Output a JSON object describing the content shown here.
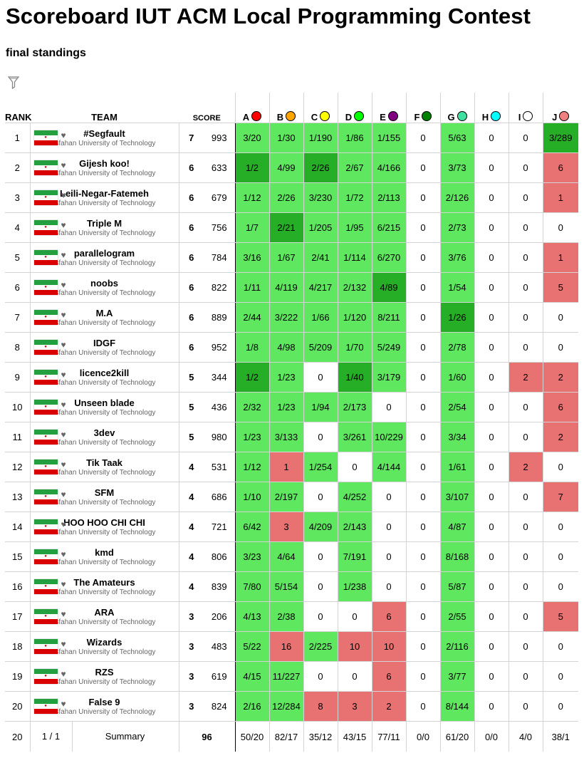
{
  "title": "Scoreboard IUT ACM Local Programming Contest",
  "subtitle": "final standings",
  "headers": {
    "rank": "RANK",
    "team": "TEAM",
    "score": "SCORE"
  },
  "problems": [
    {
      "label": "A",
      "color": "#ff0000"
    },
    {
      "label": "B",
      "color": "#ffa500"
    },
    {
      "label": "C",
      "color": "#ffff00"
    },
    {
      "label": "D",
      "color": "#00ff00"
    },
    {
      "label": "E",
      "color": "#800080"
    },
    {
      "label": "F",
      "color": "#008000"
    },
    {
      "label": "G",
      "color": "#40e0a0"
    },
    {
      "label": "H",
      "color": "#00ffff"
    },
    {
      "label": "I",
      "color": "#ffffff"
    },
    {
      "label": "J",
      "color": "#f08080"
    }
  ],
  "teams": [
    {
      "rank": "1",
      "name": "#Segfault",
      "affiliation": "Isfahan University of Technology",
      "solved": "7",
      "penalty": "993",
      "cells": [
        [
          "3/20",
          "ok"
        ],
        [
          "1/30",
          "ok"
        ],
        [
          "1/190",
          "ok"
        ],
        [
          "1/86",
          "ok"
        ],
        [
          "1/155",
          "ok"
        ],
        [
          "0",
          ""
        ],
        [
          "5/63",
          "ok"
        ],
        [
          "0",
          ""
        ],
        [
          "0",
          ""
        ],
        [
          "3/289",
          "first"
        ]
      ]
    },
    {
      "rank": "2",
      "name": "Gijesh koo!",
      "affiliation": "Isfahan University of Technology",
      "solved": "6",
      "penalty": "633",
      "cells": [
        [
          "1/2",
          "first"
        ],
        [
          "4/99",
          "ok"
        ],
        [
          "2/26",
          "first"
        ],
        [
          "2/67",
          "ok"
        ],
        [
          "4/166",
          "ok"
        ],
        [
          "0",
          ""
        ],
        [
          "3/73",
          "ok"
        ],
        [
          "0",
          ""
        ],
        [
          "0",
          ""
        ],
        [
          "6",
          "bad"
        ]
      ]
    },
    {
      "rank": "3",
      "name": "Leili-Negar-Fatemeh",
      "affiliation": "Isfahan University of Technology",
      "solved": "6",
      "penalty": "679",
      "cells": [
        [
          "1/12",
          "ok"
        ],
        [
          "2/26",
          "ok"
        ],
        [
          "3/230",
          "ok"
        ],
        [
          "1/72",
          "ok"
        ],
        [
          "2/113",
          "ok"
        ],
        [
          "0",
          ""
        ],
        [
          "2/126",
          "ok"
        ],
        [
          "0",
          ""
        ],
        [
          "0",
          ""
        ],
        [
          "1",
          "bad"
        ]
      ]
    },
    {
      "rank": "4",
      "name": "Triple M",
      "affiliation": "Isfahan University of Technology",
      "solved": "6",
      "penalty": "756",
      "cells": [
        [
          "1/7",
          "ok"
        ],
        [
          "2/21",
          "first"
        ],
        [
          "1/205",
          "ok"
        ],
        [
          "1/95",
          "ok"
        ],
        [
          "6/215",
          "ok"
        ],
        [
          "0",
          ""
        ],
        [
          "2/73",
          "ok"
        ],
        [
          "0",
          ""
        ],
        [
          "0",
          ""
        ],
        [
          "0",
          ""
        ]
      ]
    },
    {
      "rank": "5",
      "name": "parallelogram",
      "affiliation": "Isfahan University of Technology",
      "solved": "6",
      "penalty": "784",
      "cells": [
        [
          "3/16",
          "ok"
        ],
        [
          "1/67",
          "ok"
        ],
        [
          "2/41",
          "ok"
        ],
        [
          "1/114",
          "ok"
        ],
        [
          "6/270",
          "ok"
        ],
        [
          "0",
          ""
        ],
        [
          "3/76",
          "ok"
        ],
        [
          "0",
          ""
        ],
        [
          "0",
          ""
        ],
        [
          "1",
          "bad"
        ]
      ]
    },
    {
      "rank": "6",
      "name": "noobs",
      "affiliation": "Isfahan University of Technology",
      "solved": "6",
      "penalty": "822",
      "cells": [
        [
          "1/11",
          "ok"
        ],
        [
          "4/119",
          "ok"
        ],
        [
          "4/217",
          "ok"
        ],
        [
          "2/132",
          "ok"
        ],
        [
          "4/89",
          "first"
        ],
        [
          "0",
          ""
        ],
        [
          "1/54",
          "ok"
        ],
        [
          "0",
          ""
        ],
        [
          "0",
          ""
        ],
        [
          "5",
          "bad"
        ]
      ]
    },
    {
      "rank": "7",
      "name": "M.A",
      "affiliation": "Isfahan University of Technology",
      "solved": "6",
      "penalty": "889",
      "cells": [
        [
          "2/44",
          "ok"
        ],
        [
          "3/222",
          "ok"
        ],
        [
          "1/66",
          "ok"
        ],
        [
          "1/120",
          "ok"
        ],
        [
          "8/211",
          "ok"
        ],
        [
          "0",
          ""
        ],
        [
          "1/26",
          "first"
        ],
        [
          "0",
          ""
        ],
        [
          "0",
          ""
        ],
        [
          "0",
          ""
        ]
      ]
    },
    {
      "rank": "8",
      "name": "IDGF",
      "affiliation": "Isfahan University of Technology",
      "solved": "6",
      "penalty": "952",
      "cells": [
        [
          "1/8",
          "ok"
        ],
        [
          "4/98",
          "ok"
        ],
        [
          "5/209",
          "ok"
        ],
        [
          "1/70",
          "ok"
        ],
        [
          "5/249",
          "ok"
        ],
        [
          "0",
          ""
        ],
        [
          "2/78",
          "ok"
        ],
        [
          "0",
          ""
        ],
        [
          "0",
          ""
        ],
        [
          "0",
          ""
        ]
      ]
    },
    {
      "rank": "9",
      "name": "licence2kill",
      "affiliation": "Isfahan University of Technology",
      "solved": "5",
      "penalty": "344",
      "cells": [
        [
          "1/2",
          "first"
        ],
        [
          "1/23",
          "ok"
        ],
        [
          "0",
          ""
        ],
        [
          "1/40",
          "first"
        ],
        [
          "3/179",
          "ok"
        ],
        [
          "0",
          ""
        ],
        [
          "1/60",
          "ok"
        ],
        [
          "0",
          ""
        ],
        [
          "2",
          "bad"
        ],
        [
          "2",
          "bad"
        ]
      ]
    },
    {
      "rank": "10",
      "name": "Unseen blade",
      "affiliation": "Isfahan University of Technology",
      "solved": "5",
      "penalty": "436",
      "cells": [
        [
          "2/32",
          "ok"
        ],
        [
          "1/23",
          "ok"
        ],
        [
          "1/94",
          "ok"
        ],
        [
          "2/173",
          "ok"
        ],
        [
          "0",
          ""
        ],
        [
          "0",
          ""
        ],
        [
          "2/54",
          "ok"
        ],
        [
          "0",
          ""
        ],
        [
          "0",
          ""
        ],
        [
          "6",
          "bad"
        ]
      ]
    },
    {
      "rank": "11",
      "name": "3dev",
      "affiliation": "Isfahan University of Technology",
      "solved": "5",
      "penalty": "980",
      "cells": [
        [
          "1/23",
          "ok"
        ],
        [
          "3/133",
          "ok"
        ],
        [
          "0",
          ""
        ],
        [
          "3/261",
          "ok"
        ],
        [
          "10/229",
          "ok"
        ],
        [
          "0",
          ""
        ],
        [
          "3/34",
          "ok"
        ],
        [
          "0",
          ""
        ],
        [
          "0",
          ""
        ],
        [
          "2",
          "bad"
        ]
      ]
    },
    {
      "rank": "12",
      "name": "Tik Taak",
      "affiliation": "Isfahan University of Technology",
      "solved": "4",
      "penalty": "531",
      "cells": [
        [
          "1/12",
          "ok"
        ],
        [
          "1",
          "bad"
        ],
        [
          "1/254",
          "ok"
        ],
        [
          "0",
          ""
        ],
        [
          "4/144",
          "ok"
        ],
        [
          "0",
          ""
        ],
        [
          "1/61",
          "ok"
        ],
        [
          "0",
          ""
        ],
        [
          "2",
          "bad"
        ],
        [
          "0",
          ""
        ]
      ]
    },
    {
      "rank": "13",
      "name": "SFM",
      "affiliation": "Isfahan University of Technology",
      "solved": "4",
      "penalty": "686",
      "cells": [
        [
          "1/10",
          "ok"
        ],
        [
          "2/197",
          "ok"
        ],
        [
          "0",
          ""
        ],
        [
          "4/252",
          "ok"
        ],
        [
          "0",
          ""
        ],
        [
          "0",
          ""
        ],
        [
          "3/107",
          "ok"
        ],
        [
          "0",
          ""
        ],
        [
          "0",
          ""
        ],
        [
          "7",
          "bad"
        ]
      ]
    },
    {
      "rank": "14",
      "name": "HOO HOO CHI CHI",
      "affiliation": "Isfahan University of Technology",
      "solved": "4",
      "penalty": "721",
      "cells": [
        [
          "6/42",
          "ok"
        ],
        [
          "3",
          "bad"
        ],
        [
          "4/209",
          "ok"
        ],
        [
          "2/143",
          "ok"
        ],
        [
          "0",
          ""
        ],
        [
          "0",
          ""
        ],
        [
          "4/87",
          "ok"
        ],
        [
          "0",
          ""
        ],
        [
          "0",
          ""
        ],
        [
          "0",
          ""
        ]
      ]
    },
    {
      "rank": "15",
      "name": "kmd",
      "affiliation": "Isfahan University of Technology",
      "solved": "4",
      "penalty": "806",
      "cells": [
        [
          "3/23",
          "ok"
        ],
        [
          "4/64",
          "ok"
        ],
        [
          "0",
          ""
        ],
        [
          "7/191",
          "ok"
        ],
        [
          "0",
          ""
        ],
        [
          "0",
          ""
        ],
        [
          "8/168",
          "ok"
        ],
        [
          "0",
          ""
        ],
        [
          "0",
          ""
        ],
        [
          "0",
          ""
        ]
      ]
    },
    {
      "rank": "16",
      "name": "The Amateurs",
      "affiliation": "Isfahan University of Technology",
      "solved": "4",
      "penalty": "839",
      "cells": [
        [
          "7/80",
          "ok"
        ],
        [
          "5/154",
          "ok"
        ],
        [
          "0",
          ""
        ],
        [
          "1/238",
          "ok"
        ],
        [
          "0",
          ""
        ],
        [
          "0",
          ""
        ],
        [
          "5/87",
          "ok"
        ],
        [
          "0",
          ""
        ],
        [
          "0",
          ""
        ],
        [
          "0",
          ""
        ]
      ]
    },
    {
      "rank": "17",
      "name": "ARA",
      "affiliation": "Isfahan University of Technology",
      "solved": "3",
      "penalty": "206",
      "cells": [
        [
          "4/13",
          "ok"
        ],
        [
          "2/38",
          "ok"
        ],
        [
          "0",
          ""
        ],
        [
          "0",
          ""
        ],
        [
          "6",
          "bad"
        ],
        [
          "0",
          ""
        ],
        [
          "2/55",
          "ok"
        ],
        [
          "0",
          ""
        ],
        [
          "0",
          ""
        ],
        [
          "5",
          "bad"
        ]
      ]
    },
    {
      "rank": "18",
      "name": "Wizards",
      "affiliation": "Isfahan University of Technology",
      "solved": "3",
      "penalty": "483",
      "cells": [
        [
          "5/22",
          "ok"
        ],
        [
          "16",
          "bad"
        ],
        [
          "2/225",
          "ok"
        ],
        [
          "10",
          "bad"
        ],
        [
          "10",
          "bad"
        ],
        [
          "0",
          ""
        ],
        [
          "2/116",
          "ok"
        ],
        [
          "0",
          ""
        ],
        [
          "0",
          ""
        ],
        [
          "0",
          ""
        ]
      ]
    },
    {
      "rank": "19",
      "name": "RZS",
      "affiliation": "Isfahan University of Technology",
      "solved": "3",
      "penalty": "619",
      "cells": [
        [
          "4/15",
          "ok"
        ],
        [
          "11/227",
          "ok"
        ],
        [
          "0",
          ""
        ],
        [
          "0",
          ""
        ],
        [
          "6",
          "bad"
        ],
        [
          "0",
          ""
        ],
        [
          "3/77",
          "ok"
        ],
        [
          "0",
          ""
        ],
        [
          "0",
          ""
        ],
        [
          "0",
          ""
        ]
      ]
    },
    {
      "rank": "20",
      "name": "False 9",
      "affiliation": "Isfahan University of Technology",
      "solved": "3",
      "penalty": "824",
      "cells": [
        [
          "2/16",
          "ok"
        ],
        [
          "12/284",
          "ok"
        ],
        [
          "8",
          "bad"
        ],
        [
          "3",
          "bad"
        ],
        [
          "2",
          "bad"
        ],
        [
          "0",
          ""
        ],
        [
          "8/144",
          "ok"
        ],
        [
          "0",
          ""
        ],
        [
          "0",
          ""
        ],
        [
          "0",
          ""
        ]
      ]
    }
  ],
  "summary": {
    "count": "20",
    "page": "1 / 1",
    "label": "Summary",
    "score": "96",
    "problems": [
      "50/20",
      "82/17",
      "35/12",
      "43/15",
      "77/11",
      "0/0",
      "61/20",
      "0/0",
      "4/0",
      "38/1"
    ]
  },
  "icons": {
    "filter": "filter-icon",
    "flag": "iran-flag-icon",
    "favorite": "heart-icon"
  }
}
